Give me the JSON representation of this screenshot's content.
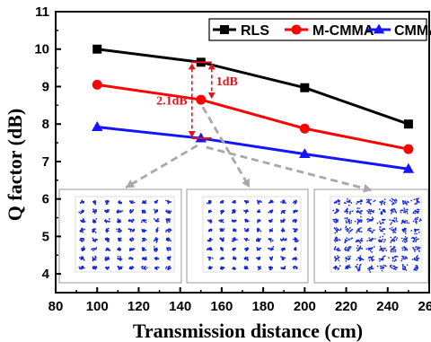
{
  "chart_data": {
    "type": "line",
    "title": "",
    "xlabel": "Transmission distance (cm)",
    "ylabel": "Q factor (dB)",
    "xlim": [
      80,
      260
    ],
    "ylim": [
      3.5,
      11
    ],
    "xticks": [
      80,
      100,
      120,
      140,
      160,
      180,
      200,
      220,
      240,
      260
    ],
    "yticks": [
      4,
      5,
      6,
      7,
      8,
      9,
      10,
      11
    ],
    "grid": false,
    "legend_position": "top-right",
    "x": [
      100,
      150,
      200,
      250
    ],
    "series": [
      {
        "name": "RLS",
        "values": [
          10.0,
          9.65,
          8.97,
          8.0
        ],
        "color": "#000000",
        "marker": "square"
      },
      {
        "name": "M-CMMA",
        "values": [
          9.05,
          8.65,
          7.88,
          7.33
        ],
        "color": "#ff0000",
        "marker": "circle"
      },
      {
        "name": "CMMA",
        "values": [
          7.92,
          7.62,
          7.2,
          6.8
        ],
        "color": "#1414ff",
        "marker": "triangle"
      }
    ],
    "annotations": [
      {
        "text": "1dB",
        "color": "#e8141b"
      },
      {
        "text": "2.1dB",
        "color": "#e8141b"
      }
    ],
    "insets": [
      {
        "name": "constellation-inset-1",
        "color": "#1428d2"
      },
      {
        "name": "constellation-inset-2",
        "color": "#1428d2"
      },
      {
        "name": "constellation-inset-3",
        "color": "#1428d2"
      }
    ]
  }
}
